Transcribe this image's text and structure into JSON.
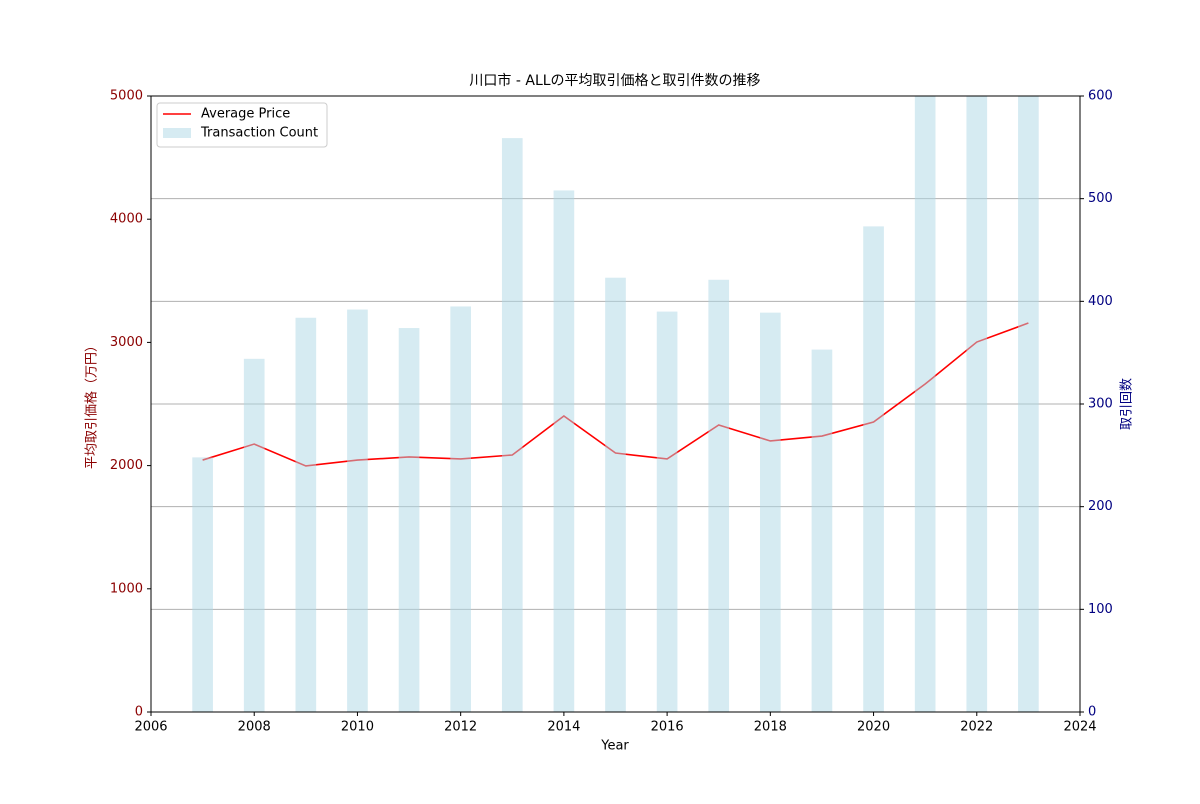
{
  "chart_data": {
    "type": "combo",
    "title": "川口市 - ALLの平均取引価格と取引件数の推移",
    "xlabel": "Year",
    "ylabel": "平均取引価格（万円）",
    "y2label": "取引回数",
    "ylabel_color": "#8b0000",
    "y2label_color": "#000080",
    "x": [
      2007,
      2008,
      2009,
      2010,
      2011,
      2012,
      2013,
      2014,
      2015,
      2016,
      2017,
      2018,
      2019,
      2020,
      2021,
      2022,
      2023
    ],
    "series": [
      {
        "name": "Average Price",
        "type": "line",
        "color": "#ff0000",
        "values": [
          2045,
          2175,
          1997,
          2045,
          2070,
          2054,
          2086,
          2403,
          2102,
          2054,
          2330,
          2200,
          2240,
          2354,
          2662,
          3003,
          3157
        ]
      },
      {
        "name": "Transaction Count",
        "type": "bar",
        "axis": "y2",
        "color": "#add8e6",
        "values": [
          248,
          344,
          384,
          392,
          374,
          395,
          559,
          508,
          423,
          390,
          421,
          389,
          353,
          473,
          600,
          600,
          600
        ]
      }
    ],
    "xlim": [
      2006,
      2024
    ],
    "xticks": [
      2006,
      2008,
      2010,
      2012,
      2014,
      2016,
      2018,
      2020,
      2022,
      2024
    ],
    "ylim": [
      0,
      5000
    ],
    "yticks": [
      0,
      1000,
      2000,
      3000,
      4000,
      5000
    ],
    "y2lim": [
      0,
      600
    ],
    "y2ticks": [
      0,
      100,
      200,
      300,
      400,
      500,
      600
    ],
    "grid": "y2",
    "legend": "upper left"
  }
}
